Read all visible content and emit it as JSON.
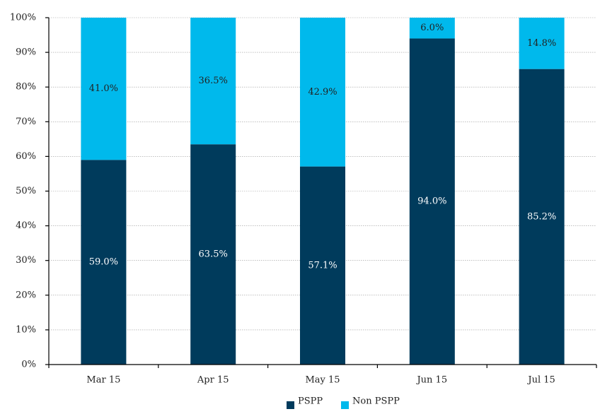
{
  "chart_data": {
    "type": "bar",
    "stacked": true,
    "percent": true,
    "categories": [
      "Mar 15",
      "Apr 15",
      "May 15",
      "Jun 15",
      "Jul 15"
    ],
    "series": [
      {
        "name": "PSPP",
        "color": "#003b5c",
        "label_color": "#ffffff",
        "values": [
          59.0,
          63.5,
          57.1,
          94.0,
          85.2
        ],
        "labels": [
          "59.0%",
          "63.5%",
          "57.1%",
          "94.0%",
          "85.2%"
        ]
      },
      {
        "name": "Non PSPP",
        "color": "#00b9ec",
        "label_color": "#222222",
        "values": [
          41.0,
          36.5,
          42.9,
          6.0,
          14.8
        ],
        "labels": [
          "41.0%",
          "36.5%",
          "42.9%",
          "6.0%",
          "14.8%"
        ]
      }
    ],
    "yticks": [
      "0%",
      "10%",
      "20%",
      "30%",
      "40%",
      "50%",
      "60%",
      "70%",
      "80%",
      "90%",
      "100%"
    ],
    "ylim": [
      0,
      100
    ],
    "grid": true,
    "legend_position": "bottom-center",
    "title": "",
    "xlabel": "",
    "ylabel": ""
  }
}
